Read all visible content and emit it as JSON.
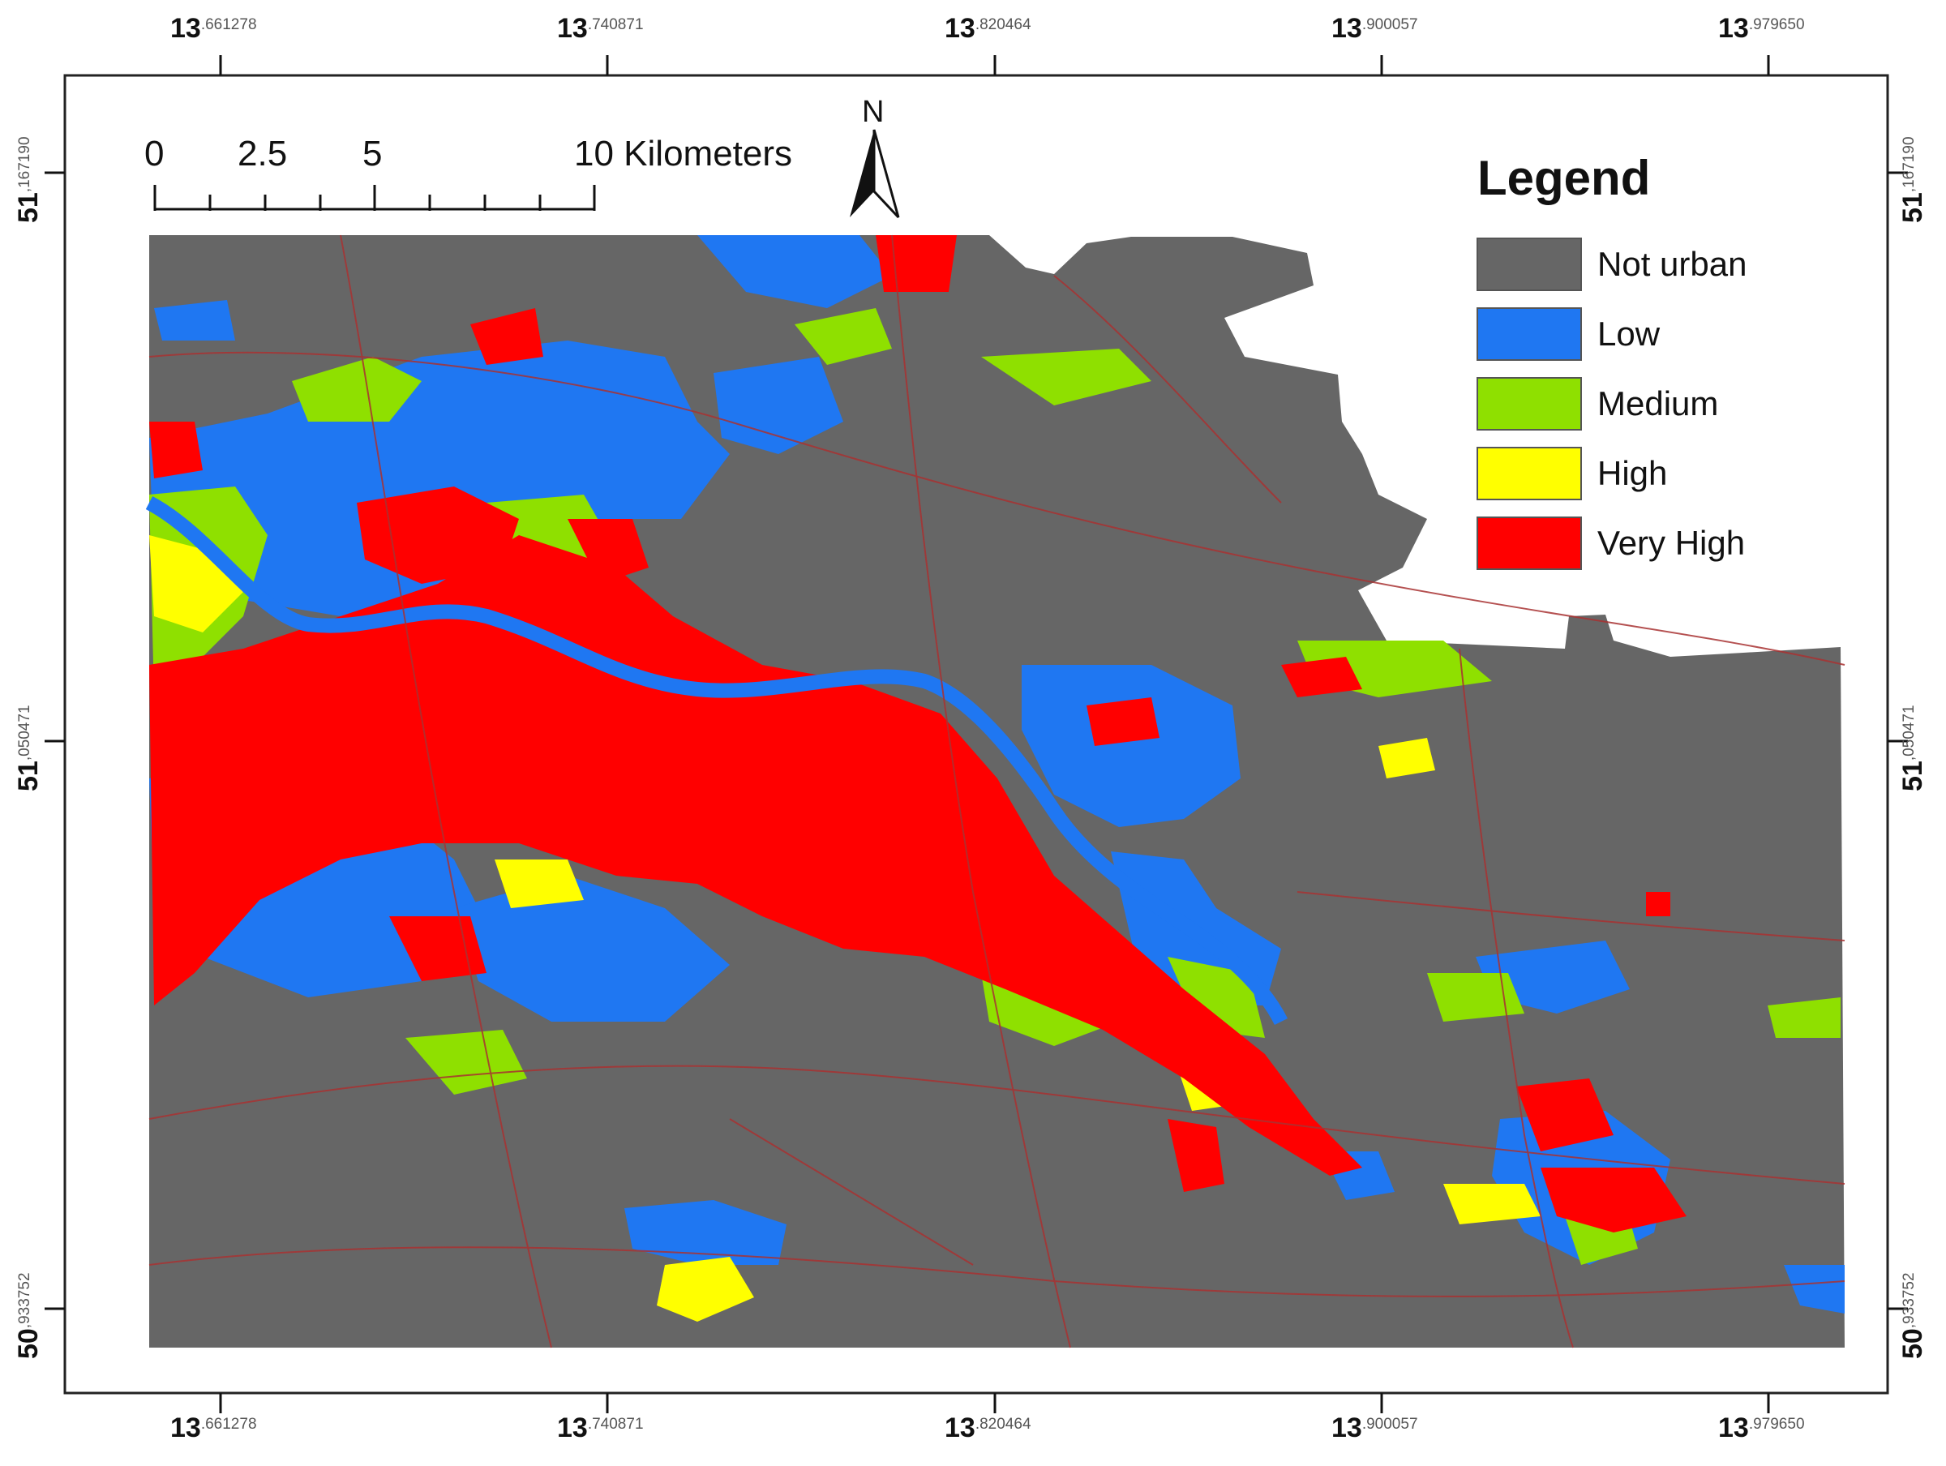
{
  "map": {
    "longitudes": [
      {
        "deg": "13",
        "frac": ".661278"
      },
      {
        "deg": "13",
        "frac": ".740871"
      },
      {
        "deg": "13",
        "frac": ".820464"
      },
      {
        "deg": "13",
        "frac": ".900057"
      },
      {
        "deg": "13",
        "frac": ".979650"
      }
    ],
    "latitudes": [
      {
        "deg": "51",
        "frac": ",167190"
      },
      {
        "deg": "51",
        "frac": ",050471"
      },
      {
        "deg": "50",
        "frac": ",933752"
      }
    ],
    "scale_bar": {
      "labels": [
        "0",
        "2.5",
        "5",
        "10 Kilometers"
      ]
    },
    "north_arrow": {
      "label": "N"
    },
    "legend": {
      "title": "Legend",
      "items": [
        {
          "label": "Not urban",
          "color": "#666666"
        },
        {
          "label": "Low",
          "color": "#1f77f2"
        },
        {
          "label": "Medium",
          "color": "#8fe000"
        },
        {
          "label": "High",
          "color": "#ffff00"
        },
        {
          "label": "Very High",
          "color": "#ff0000"
        }
      ]
    },
    "colors": {
      "background": "#666666",
      "roads": "#a83232",
      "river": "#1f77f2"
    }
  }
}
